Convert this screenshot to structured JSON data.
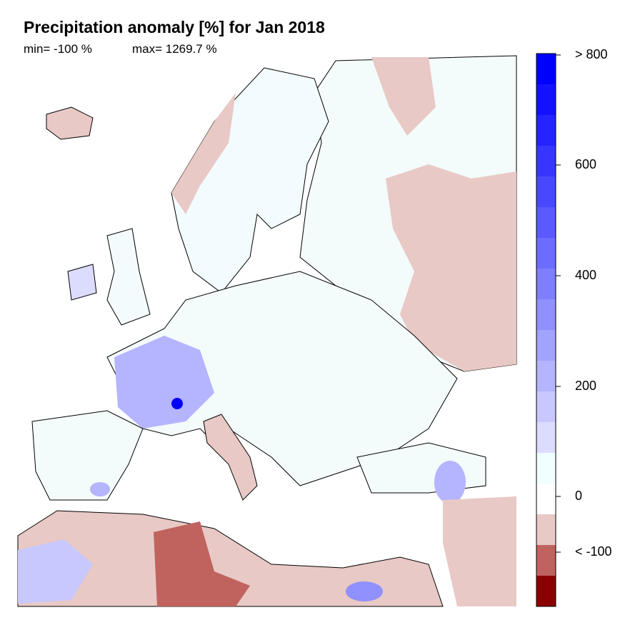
{
  "header": {
    "title": "Precipitation anomaly [%] for Jan 2018",
    "min": "min= -100 %",
    "max": "max= 1269.7 %"
  },
  "colorbar": {
    "labels": [
      "> 800",
      "600",
      "400",
      "200",
      "0",
      "< -100"
    ],
    "colors": [
      "#0000ff",
      "#1212ff",
      "#2424ff",
      "#3636ff",
      "#4848ff",
      "#5a5aff",
      "#6c6cff",
      "#7e7eff",
      "#9090ff",
      "#a2a2ff",
      "#b4b4ff",
      "#c8c8ff",
      "#dcdcff",
      "#f0ffff",
      "#ffffff",
      "#e8c9c5",
      "#c0635f",
      "#8b0000"
    ]
  }
}
